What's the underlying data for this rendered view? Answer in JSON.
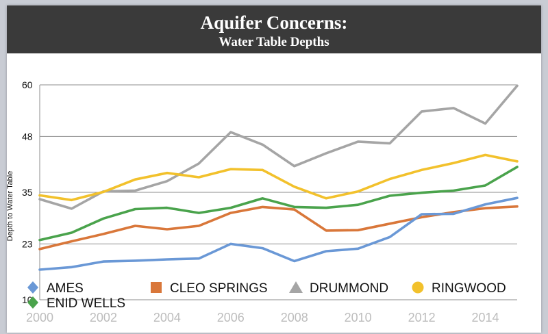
{
  "header": {
    "title": "Aquifer Concerns:",
    "subtitle": "Water Table Depths"
  },
  "chart_data": {
    "type": "line",
    "title": "Aquifer Concerns: Water Table Depths",
    "xlabel": "",
    "ylabel": "Depth to Water Table",
    "x": [
      2000,
      2001,
      2002,
      2003,
      2004,
      2005,
      2006,
      2007,
      2008,
      2009,
      2010,
      2011,
      2012,
      2013,
      2014,
      2015
    ],
    "x_ticks": [
      2000,
      2002,
      2004,
      2006,
      2008,
      2010,
      2012,
      2014
    ],
    "y_ticks": [
      10,
      23,
      35,
      48,
      60
    ],
    "ylim": [
      10,
      60
    ],
    "grid": true,
    "legend_position": "bottom",
    "series": [
      {
        "name": "AMES",
        "color": "#6a98d6",
        "marker": "diamond",
        "values": [
          17.0,
          17.6,
          18.9,
          19.1,
          19.4,
          19.6,
          23.0,
          22.0,
          19.0,
          21.3,
          21.9,
          24.6,
          29.9,
          30.0,
          32.2,
          33.7
        ]
      },
      {
        "name": "CLEO SPRINGS",
        "color": "#d9773a",
        "marker": "square",
        "values": [
          21.8,
          23.6,
          25.3,
          27.2,
          26.4,
          27.2,
          30.2,
          31.6,
          31.0,
          26.1,
          26.2,
          27.7,
          29.2,
          30.4,
          31.3,
          31.7
        ]
      },
      {
        "name": "DRUMMOND",
        "color": "#a5a5a5",
        "marker": "triangle",
        "values": [
          33.4,
          31.2,
          35.2,
          35.4,
          37.6,
          41.7,
          49.0,
          46.1,
          41.1,
          44.1,
          46.8,
          46.4,
          53.8,
          54.6,
          51.0,
          59.8
        ]
      },
      {
        "name": "RINGWOOD",
        "color": "#f2c12c",
        "marker": "circle",
        "values": [
          34.3,
          33.2,
          35.1,
          38.0,
          39.5,
          38.5,
          40.4,
          40.2,
          36.3,
          33.6,
          35.2,
          38.1,
          40.2,
          41.8,
          43.7,
          42.2
        ]
      },
      {
        "name": "ENID WELLS",
        "color": "#4aa34c",
        "marker": "diamond",
        "values": [
          23.9,
          25.6,
          28.9,
          31.1,
          31.4,
          30.2,
          31.4,
          33.6,
          31.6,
          31.4,
          32.1,
          34.2,
          34.9,
          35.4,
          36.6,
          40.9
        ]
      }
    ]
  }
}
